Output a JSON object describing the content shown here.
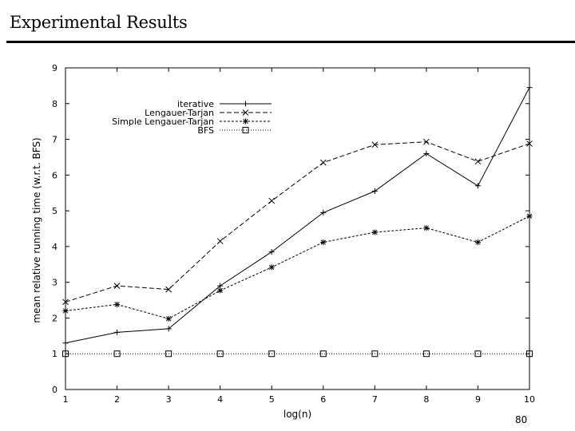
{
  "slide": {
    "title": "Experimental Results",
    "page_number": "80"
  },
  "chart_data": {
    "type": "line",
    "xlabel": "log(n)",
    "ylabel": "mean relative running time (w.r.t. BFS)",
    "x": [
      1,
      2,
      3,
      4,
      5,
      6,
      7,
      8,
      9,
      10
    ],
    "xlim": [
      1,
      10
    ],
    "ylim": [
      0,
      9
    ],
    "xticks": [
      1,
      2,
      3,
      4,
      5,
      6,
      7,
      8,
      9,
      10
    ],
    "yticks": [
      0,
      1,
      2,
      3,
      4,
      5,
      6,
      7,
      8,
      9
    ],
    "grid": false,
    "legend_position": "top-left",
    "series": [
      {
        "name": "iterative",
        "marker": "plus",
        "dash": "",
        "values": [
          1.3,
          1.6,
          1.7,
          2.9,
          3.85,
          4.95,
          5.55,
          6.6,
          5.7,
          8.45
        ]
      },
      {
        "name": "Lengauer-Tarjan",
        "marker": "cross",
        "dash": "6,3",
        "values": [
          2.45,
          2.9,
          2.8,
          4.15,
          5.28,
          6.35,
          6.85,
          6.93,
          6.38,
          6.88
        ]
      },
      {
        "name": "Simple Lengauer-Tarjan",
        "marker": "star",
        "dash": "3,2",
        "values": [
          2.2,
          2.38,
          1.98,
          2.77,
          3.42,
          4.12,
          4.4,
          4.52,
          4.12,
          4.85
        ]
      },
      {
        "name": "BFS",
        "marker": "square",
        "dash": "1,2",
        "values": [
          1,
          1,
          1,
          1,
          1,
          1,
          1,
          1,
          1,
          1
        ]
      }
    ]
  }
}
